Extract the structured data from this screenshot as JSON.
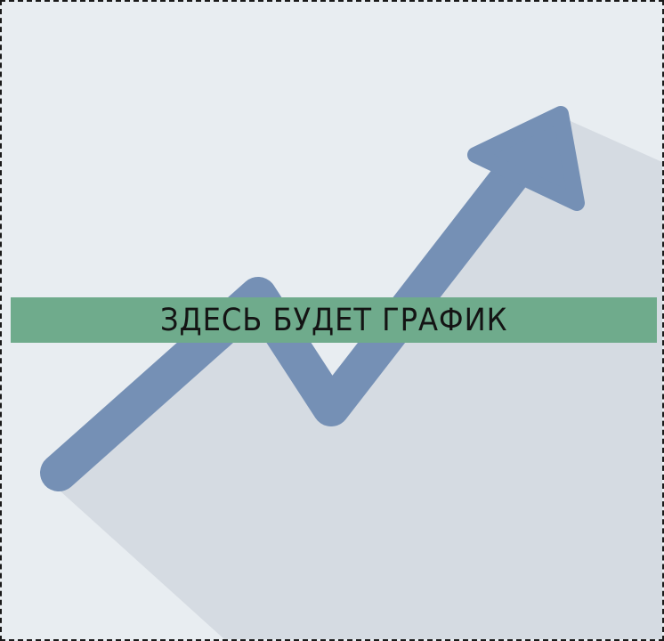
{
  "placeholder": {
    "banner_text": "ЗДЕСЬ БУДЕТ ГРАФИК"
  },
  "colors": {
    "background": "#e8edf1",
    "arrow": "#7590b5",
    "shadow": "#d5dbe2",
    "banner": "#6fab8c",
    "border": "#1a1a1a",
    "text": "#141414"
  },
  "icons": {
    "arrow": "trend-up-arrow-icon"
  }
}
